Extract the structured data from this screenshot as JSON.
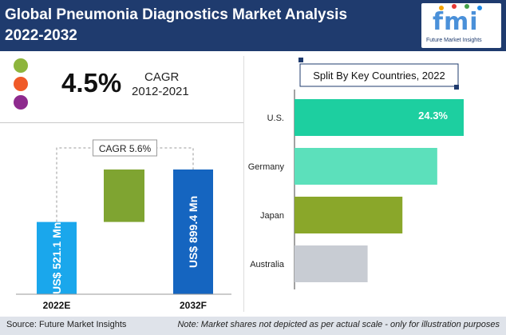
{
  "header": {
    "title_line1": "Global Pneumonia Diagnostics Market Analysis",
    "title_line2": "2022-2032"
  },
  "logo": {
    "text": "fmi",
    "subtitle": "Future Market Insights"
  },
  "cagr_block": {
    "value": "4.5%",
    "label": "CAGR",
    "period": "2012-2021"
  },
  "legend_dots": {
    "colors": [
      "#8db53c",
      "#f05a28",
      "#8e2a8e"
    ]
  },
  "footer": {
    "source": "Source: Future Market Insights",
    "note": "Note: Market shares not depicted as per actual scale - only for illustration purposes"
  },
  "chart_data": [
    {
      "type": "bar",
      "categories": [
        "2022E",
        "2032F"
      ],
      "values": [
        521.1,
        899.4
      ],
      "value_labels": [
        "US$ 521.1 Mn",
        "US$ 899.4 Mn"
      ],
      "annotation": "CAGR 5.6%",
      "bar_colors": [
        "#1aa7ec",
        "#1565c0"
      ],
      "connector_color": "#7fa431"
    },
    {
      "type": "bar",
      "orientation": "horizontal",
      "title": "Split By Key Countries, 2022",
      "categories": [
        "U.S.",
        "Germany",
        "Japan",
        "Australia"
      ],
      "values": [
        24.3,
        20.5,
        15.5,
        10.5
      ],
      "data_labels": [
        "24.3%",
        "",
        "",
        ""
      ],
      "bar_colors": [
        "#1dcfa0",
        "#5ce0bb",
        "#8aa72a",
        "#c8ccd3"
      ]
    }
  ]
}
